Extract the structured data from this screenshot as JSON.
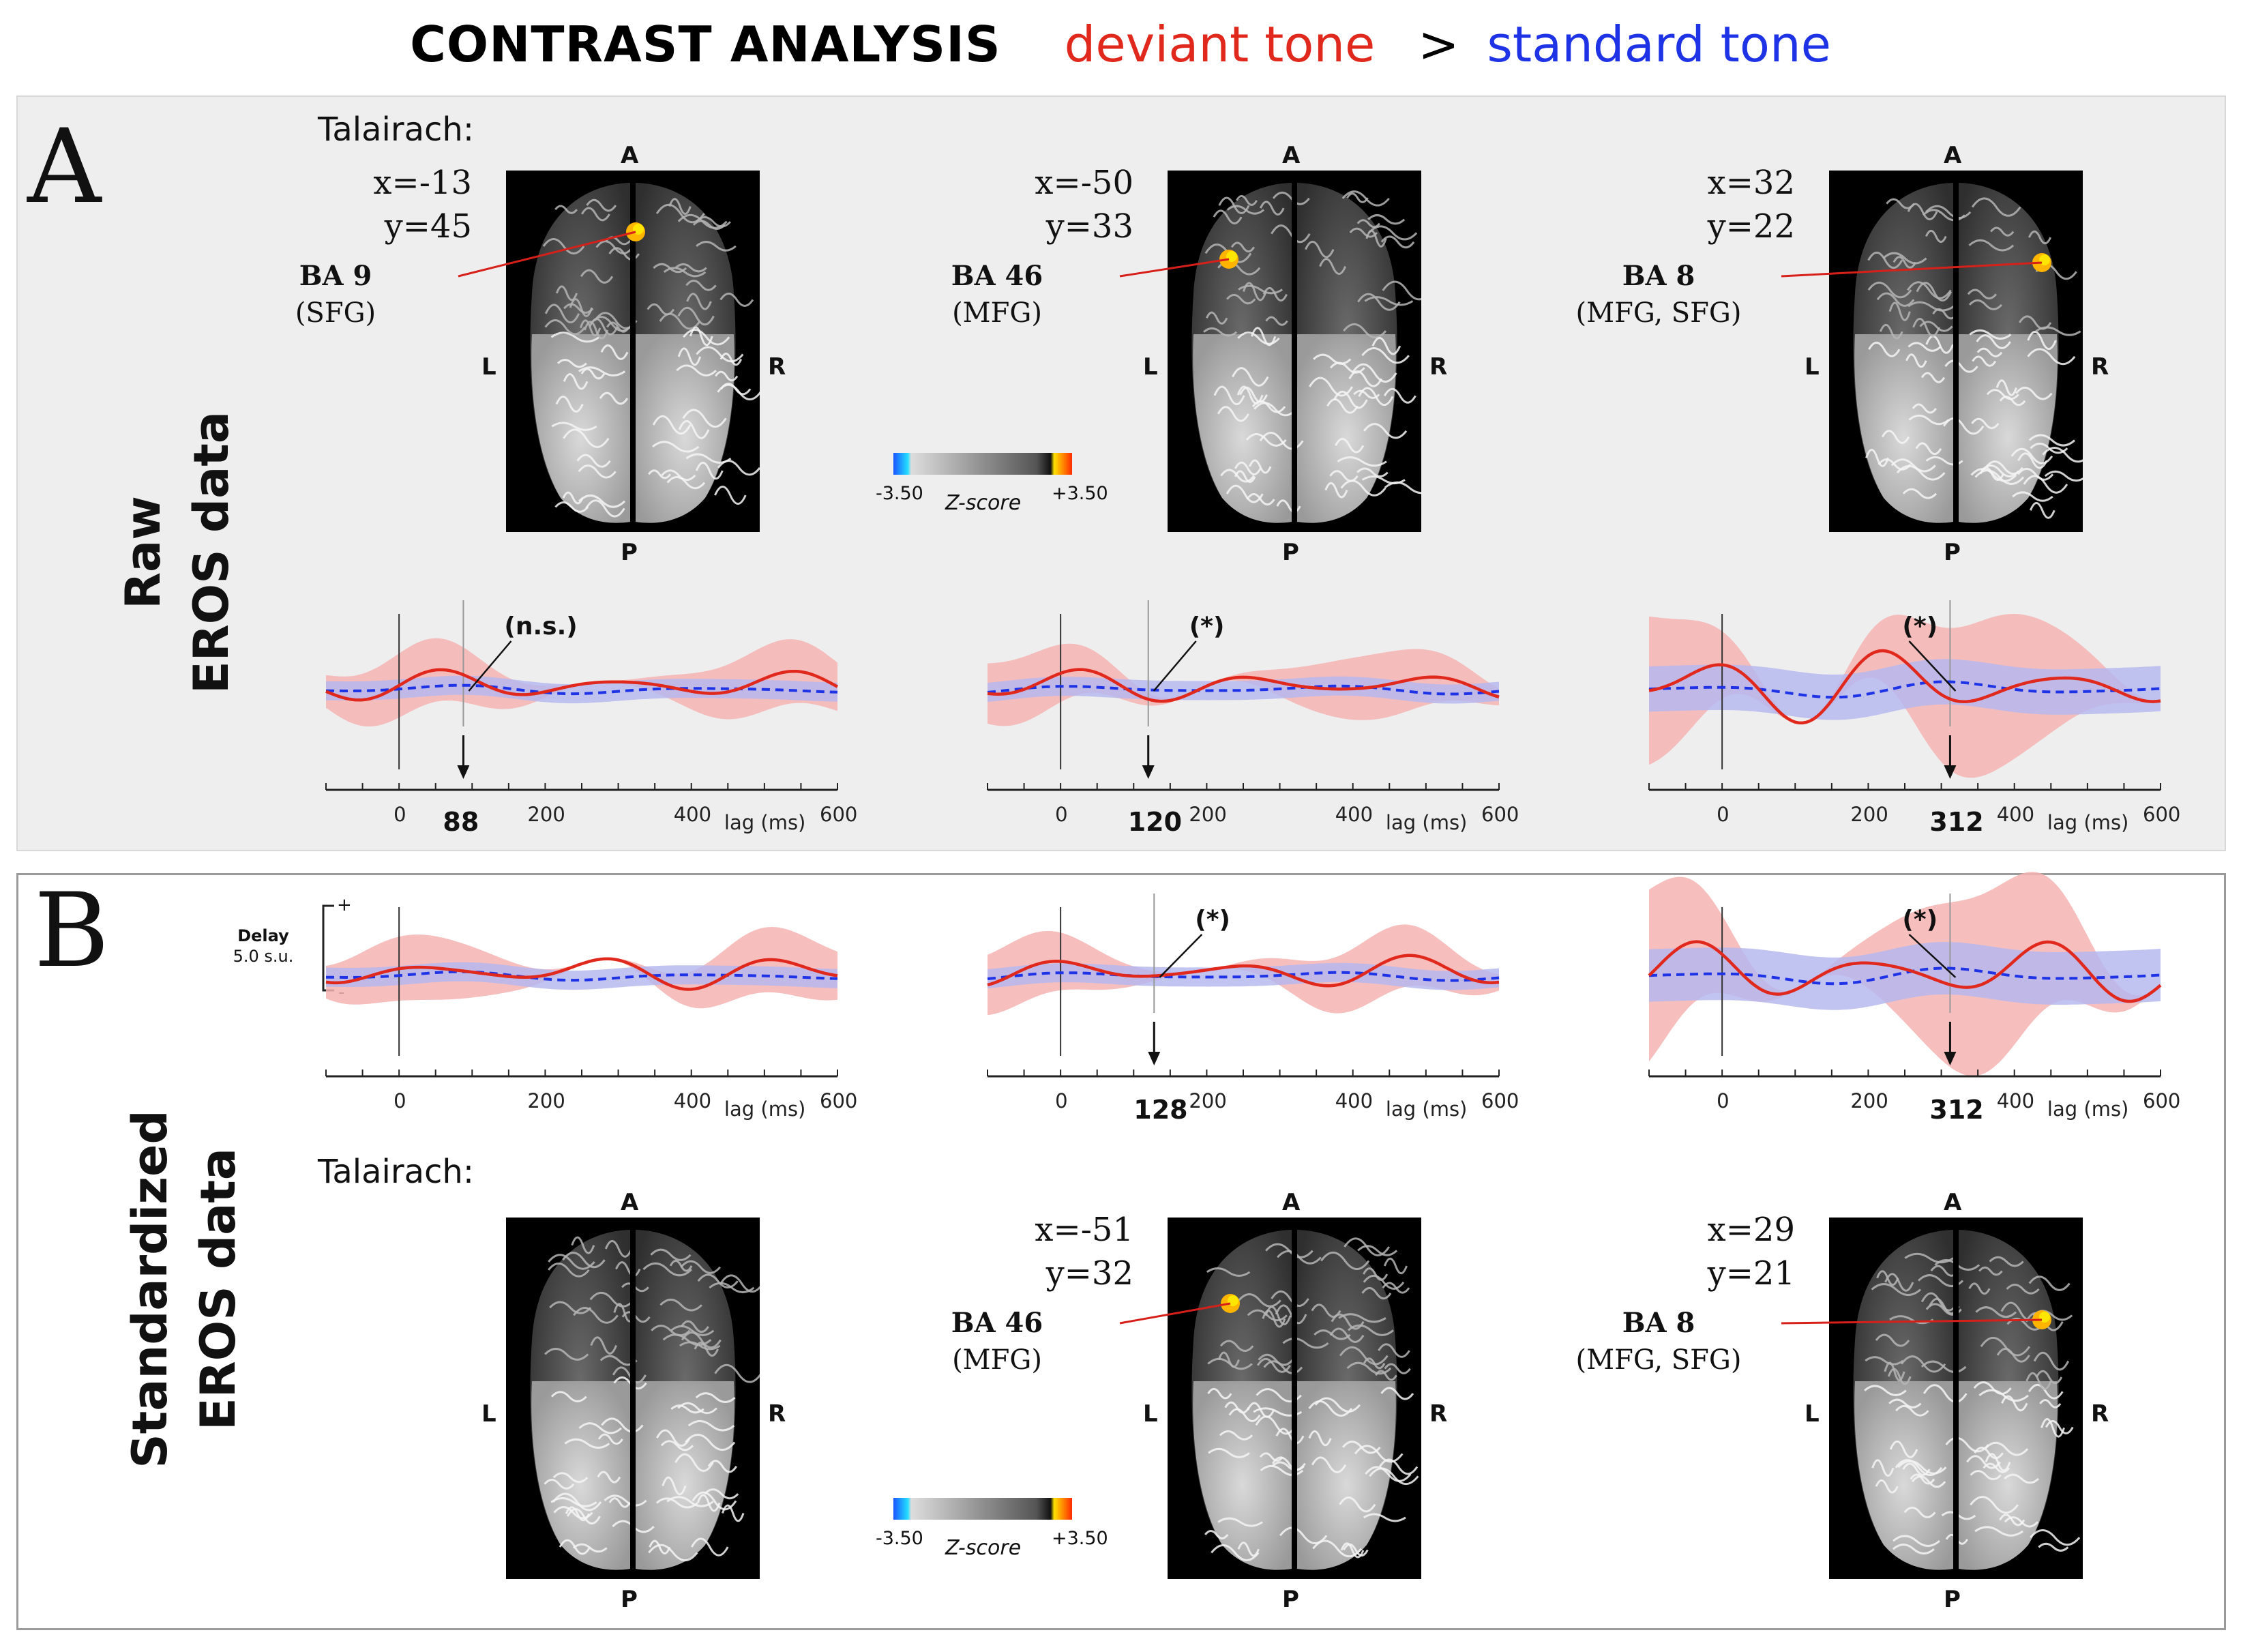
{
  "title": {
    "main": "CONTRAST ANALYSIS",
    "deviant": "deviant tone",
    "gt": ">",
    "standard": "standard tone"
  },
  "colors": {
    "deviant": "#e0281c",
    "standard": "#1f33e6",
    "deviant_band": "#f6b3b3",
    "standard_band": "#b6b9ee",
    "activation": "#ffc400"
  },
  "panelA": {
    "letter": "A",
    "row_label_1": "Raw",
    "row_label_2": "EROS data",
    "talairach": "Talairach:",
    "brains": [
      {
        "x": "x=-13",
        "y": "y=45",
        "ba": "BA 9",
        "region": "(SFG)"
      },
      {
        "x": "x=-50",
        "y": "y=33",
        "ba": "BA 46",
        "region": "(MFG)"
      },
      {
        "x": "x=32",
        "y": "y=22",
        "ba": "BA 8",
        "region": "(MFG, SFG)"
      }
    ],
    "orient": {
      "a": "A",
      "p": "P",
      "l": "L",
      "r": "R"
    },
    "colorbar": {
      "min": "-3.50",
      "max": "+3.50",
      "label": "Z-score"
    },
    "lags": [
      "88",
      "120",
      "312"
    ],
    "sig": [
      "(n.s.)",
      "(*)",
      "(*)"
    ]
  },
  "panelB": {
    "letter": "B",
    "row_label_1": "Standardized",
    "row_label_2": "EROS data",
    "talairach": "Talairach:",
    "delay": {
      "label": "Delay",
      "unit": "5.0 s.u.",
      "plus": "+",
      "minus": "-"
    },
    "brains": [
      {
        "x": "",
        "y": "",
        "ba": "",
        "region": ""
      },
      {
        "x": "x=-51",
        "y": "y=32",
        "ba": "BA 46",
        "region": "(MFG)"
      },
      {
        "x": "x=29",
        "y": "y=21",
        "ba": "BA 8",
        "region": "(MFG, SFG)"
      }
    ],
    "orient": {
      "a": "A",
      "p": "P",
      "l": "L",
      "r": "R"
    },
    "colorbar": {
      "min": "-3.50",
      "max": "+3.50",
      "label": "Z-score"
    },
    "lags": [
      "",
      "128",
      "312"
    ],
    "sig": [
      "",
      "(*)",
      "(*)"
    ]
  },
  "axis": {
    "ticks": [
      "0",
      "200",
      "400",
      "600"
    ],
    "xlabel": "lag (ms)"
  },
  "chart_data": [
    {
      "type": "line",
      "panel": "A",
      "column": 1,
      "xlabel": "lag (ms)",
      "xlim": [
        -100,
        600
      ],
      "marked_lag": 88,
      "significance": "(n.s.)",
      "series": [
        {
          "name": "deviant tone",
          "style": "solid"
        },
        {
          "name": "standard tone",
          "style": "dashed"
        }
      ]
    },
    {
      "type": "line",
      "panel": "A",
      "column": 2,
      "xlabel": "lag (ms)",
      "xlim": [
        -100,
        600
      ],
      "marked_lag": 120,
      "significance": "(*)",
      "series": [
        {
          "name": "deviant tone",
          "style": "solid"
        },
        {
          "name": "standard tone",
          "style": "dashed"
        }
      ]
    },
    {
      "type": "line",
      "panel": "A",
      "column": 3,
      "xlabel": "lag (ms)",
      "xlim": [
        -100,
        600
      ],
      "marked_lag": 312,
      "significance": "(*)",
      "series": [
        {
          "name": "deviant tone",
          "style": "solid"
        },
        {
          "name": "standard tone",
          "style": "dashed"
        }
      ]
    },
    {
      "type": "line",
      "panel": "B",
      "column": 1,
      "xlabel": "lag (ms)",
      "xlim": [
        -100,
        600
      ],
      "ylabel": "Delay 5.0 s.u.",
      "series": [
        {
          "name": "deviant tone",
          "style": "solid"
        },
        {
          "name": "standard tone",
          "style": "dashed"
        }
      ]
    },
    {
      "type": "line",
      "panel": "B",
      "column": 2,
      "xlabel": "lag (ms)",
      "xlim": [
        -100,
        600
      ],
      "marked_lag": 128,
      "significance": "(*)",
      "series": [
        {
          "name": "deviant tone",
          "style": "solid"
        },
        {
          "name": "standard tone",
          "style": "dashed"
        }
      ]
    },
    {
      "type": "line",
      "panel": "B",
      "column": 3,
      "xlabel": "lag (ms)",
      "xlim": [
        -100,
        600
      ],
      "marked_lag": 312,
      "significance": "(*)",
      "series": [
        {
          "name": "deviant tone",
          "style": "solid"
        },
        {
          "name": "standard tone",
          "style": "dashed"
        }
      ]
    }
  ]
}
